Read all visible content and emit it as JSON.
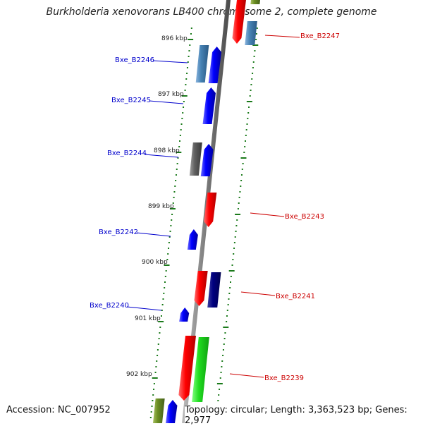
{
  "title": "Burkholderia xenovorans LB400 chromosome 2, complete genome",
  "footer": {
    "accession": "Accession: NC_007952",
    "topology": "Topology: circular; Length: 3,363,523 bp; Genes: 2,977"
  },
  "colors": {
    "forward_label": "#0000cc",
    "reverse_label": "#cc0000",
    "tick": "#1a7a1a",
    "backbone": "#808080"
  },
  "kbp_labels": [
    "896 kbp",
    "897 kbp",
    "898 kbp",
    "899 kbp",
    "900 kbp",
    "901 kbp",
    "902 kbp"
  ],
  "genes_left": [
    {
      "label": "Bxe_B2246"
    },
    {
      "label": "Bxe_B2245"
    },
    {
      "label": "Bxe_B2244"
    },
    {
      "label": "Bxe_B2242"
    },
    {
      "label": "Bxe_B2240"
    }
  ],
  "genes_right": [
    {
      "label": "Bxe_B2247"
    },
    {
      "label": "Bxe_B2243"
    },
    {
      "label": "Bxe_B2241"
    },
    {
      "label": "Bxe_B2239"
    }
  ]
}
